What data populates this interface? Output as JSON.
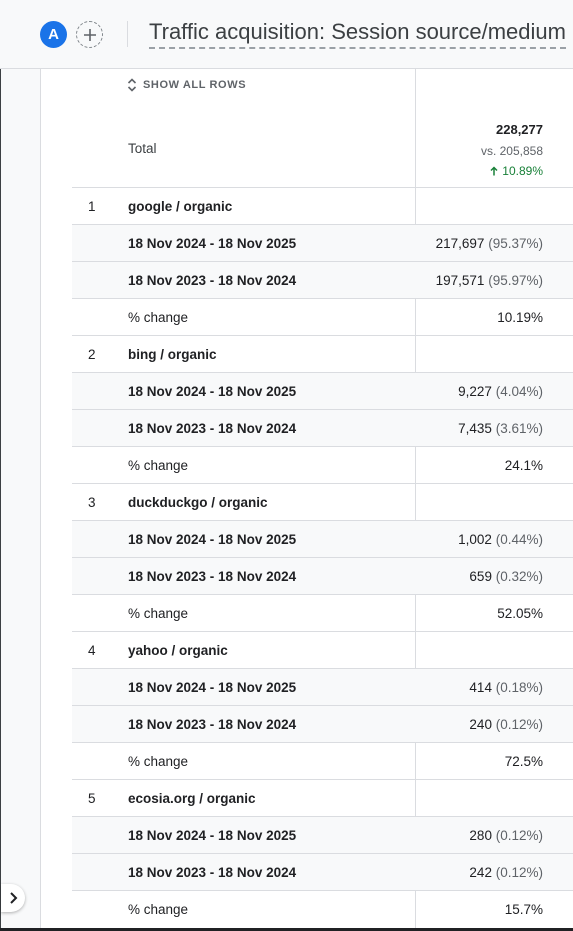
{
  "header": {
    "avatar_letter": "A",
    "title": "Traffic acquisition: Session source/medium"
  },
  "table": {
    "show_all_rows_label": "SHOW ALL ROWS",
    "total": {
      "label": "Total",
      "value": "228,277",
      "vs": "vs. 205,858",
      "change": "10.89%"
    },
    "groups": [
      {
        "index": "1",
        "name": "google / organic",
        "current_label": "18 Nov 2024 - 18 Nov 2025",
        "current_value": "217,697",
        "current_pct": "(95.37%)",
        "previous_label": "18 Nov 2023 - 18 Nov 2024",
        "previous_value": "197,571",
        "previous_pct": "(95.97%)",
        "change_label": "% change",
        "change_value": "10.19%"
      },
      {
        "index": "2",
        "name": "bing / organic",
        "current_label": "18 Nov 2024 - 18 Nov 2025",
        "current_value": "9,227",
        "current_pct": "(4.04%)",
        "previous_label": "18 Nov 2023 - 18 Nov 2024",
        "previous_value": "7,435",
        "previous_pct": "(3.61%)",
        "change_label": "% change",
        "change_value": "24.1%"
      },
      {
        "index": "3",
        "name": "duckduckgo / organic",
        "current_label": "18 Nov 2024 - 18 Nov 2025",
        "current_value": "1,002",
        "current_pct": "(0.44%)",
        "previous_label": "18 Nov 2023 - 18 Nov 2024",
        "previous_value": "659",
        "previous_pct": "(0.32%)",
        "change_label": "% change",
        "change_value": "52.05%"
      },
      {
        "index": "4",
        "name": "yahoo / organic",
        "current_label": "18 Nov 2024 - 18 Nov 2025",
        "current_value": "414",
        "current_pct": "(0.18%)",
        "previous_label": "18 Nov 2023 - 18 Nov 2024",
        "previous_value": "240",
        "previous_pct": "(0.12%)",
        "change_label": "% change",
        "change_value": "72.5%"
      },
      {
        "index": "5",
        "name": "ecosia.org / organic",
        "current_label": "18 Nov 2024 - 18 Nov 2025",
        "current_value": "280",
        "current_pct": "(0.12%)",
        "previous_label": "18 Nov 2023 - 18 Nov 2024",
        "previous_value": "242",
        "previous_pct": "(0.12%)",
        "change_label": "% change",
        "change_value": "15.7%"
      }
    ]
  },
  "colors": {
    "accent": "#1a73e8",
    "positive": "#188038",
    "row_shade": "#f8f9fa"
  },
  "icons": {
    "avatar": "avatar-icon",
    "add": "plus-icon",
    "show_rows": "unfold-icon",
    "change_up": "arrow-up-icon",
    "expand": "chevron-right-icon"
  }
}
